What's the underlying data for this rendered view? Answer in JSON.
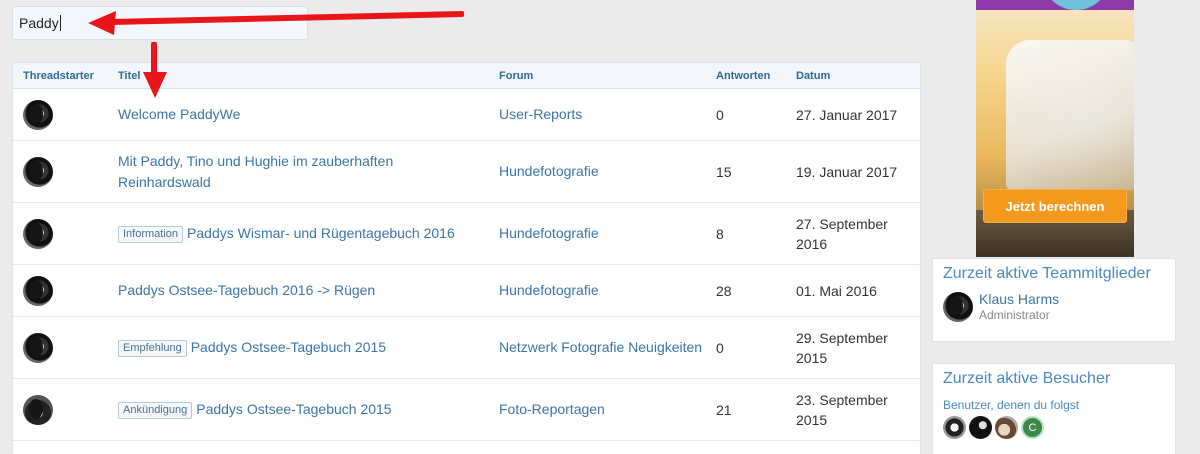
{
  "search": {
    "value": "Paddy"
  },
  "table": {
    "headers": {
      "starter": "Threadstarter",
      "title": "Titel",
      "forum": "Forum",
      "replies": "Antworten",
      "date": "Datum"
    },
    "rows": [
      {
        "badge": "",
        "title": "Welcome PaddyWe",
        "forum": "User-Reports",
        "replies": "0",
        "date": "27. Januar 2017"
      },
      {
        "badge": "",
        "title": "Mit Paddy, Tino und Hughie im zauberhaften Reinhardswald",
        "forum": "Hundefotografie",
        "replies": "15",
        "date": "19. Januar 2017"
      },
      {
        "badge": "Information",
        "title": "Paddys Wismar- und Rügentagebuch 2016",
        "forum": "Hundefotografie",
        "replies": "8",
        "date": "27. September 2016"
      },
      {
        "badge": "",
        "title": "Paddys Ostsee-Tagebuch 2016 -> Rügen",
        "forum": "Hundefotografie",
        "replies": "28",
        "date": "01. Mai 2016"
      },
      {
        "badge": "Empfehlung",
        "title": "Paddys Ostsee-Tagebuch 2015",
        "forum": "Netzwerk Fotografie Neuigkeiten",
        "replies": "0",
        "date": "29. September 2015"
      },
      {
        "badge": "Ankündigung",
        "title": "Paddys Ostsee-Tagebuch 2015",
        "forum": "Foto-Reportagen",
        "replies": "21",
        "date": "23. September 2015"
      }
    ]
  },
  "ad": {
    "button": "Jetzt berechnen"
  },
  "team": {
    "title": "Zurzeit aktive Teammitglieder",
    "member_name": "Klaus Harms",
    "member_role": "Administrator"
  },
  "visitors": {
    "title": "Zurzeit aktive Besucher",
    "subtitle": "Benutzer, denen du folgst",
    "last_avatar_letter": "C"
  },
  "colors": {
    "link": "#3b75a6",
    "arrow": "#e8151b",
    "ad_button": "#f39a1e"
  }
}
